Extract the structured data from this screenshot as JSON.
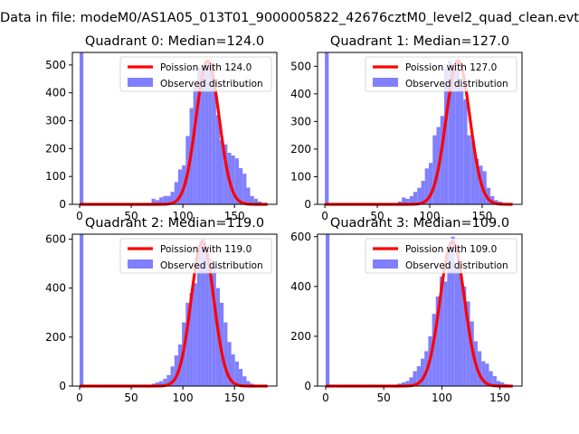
{
  "figure": {
    "suptitle": "Data in file: modeM0/AS1A05_013T01_9000005822_42676cztM0_level2_quad_clean.evt"
  },
  "colors": {
    "observed": "#8080ff",
    "poisson": "#ff0000",
    "axes": "#000000",
    "background": "#ffffff"
  },
  "chart_data": [
    {
      "type": "bar",
      "title": "Quadrant 0: Median=124.0",
      "xlim": [
        -7,
        191
      ],
      "ylim": [
        0,
        545
      ],
      "xticks": [
        0,
        50,
        100,
        150
      ],
      "yticks": [
        0,
        100,
        200,
        300,
        400,
        500
      ],
      "grid": false,
      "legend_placement": "upper right",
      "legend": [
        "Poission with 124.0",
        "Observed distribution"
      ],
      "series": [
        {
          "name": "Observed distribution",
          "type": "histogram",
          "bin_width": 3.67,
          "x": [
            0.0,
            66.1,
            69.7,
            73.4,
            77.1,
            80.8,
            84.4,
            88.1,
            91.8,
            95.4,
            99.1,
            102.8,
            106.5,
            110.1,
            113.8,
            117.5,
            121.1,
            124.8,
            128.5,
            132.2,
            135.8,
            139.5,
            143.2,
            146.8,
            150.5,
            154.2,
            157.9,
            161.5,
            165.2,
            168.9,
            172.5,
            176.2
          ],
          "values": [
            545,
            5,
            20,
            15,
            25,
            30,
            30,
            45,
            80,
            125,
            140,
            245,
            345,
            420,
            490,
            500,
            510,
            500,
            420,
            320,
            230,
            215,
            185,
            175,
            165,
            130,
            110,
            60,
            30,
            20,
            10,
            5
          ]
        },
        {
          "name": "Poission with 124.0",
          "type": "line",
          "mean": 124.0,
          "x_range": [
            0,
            182
          ],
          "peak": 515
        }
      ]
    },
    {
      "type": "bar",
      "title": "Quadrant 1: Median=127.0",
      "xlim": [
        -7,
        188
      ],
      "ylim": [
        0,
        550
      ],
      "xticks": [
        0,
        50,
        100,
        150
      ],
      "yticks": [
        0,
        100,
        200,
        300,
        400,
        500
      ],
      "grid": false,
      "legend_placement": "upper right",
      "legend": [
        "Poission with 127.0",
        "Observed distribution"
      ],
      "series": [
        {
          "name": "Observed distribution",
          "type": "histogram",
          "bin_width": 3.67,
          "x": [
            0.0,
            69.7,
            73.4,
            77.1,
            80.8,
            84.4,
            88.1,
            91.8,
            95.4,
            99.1,
            102.8,
            106.5,
            110.1,
            113.8,
            117.5,
            121.1,
            124.8,
            128.5,
            132.2,
            135.8,
            139.5,
            143.2,
            146.8,
            150.5,
            154.2,
            157.9,
            161.5,
            165.2,
            168.9
          ],
          "values": [
            550,
            10,
            25,
            20,
            30,
            45,
            60,
            85,
            130,
            150,
            250,
            280,
            320,
            490,
            520,
            510,
            490,
            430,
            380,
            250,
            230,
            165,
            140,
            120,
            60,
            30,
            15,
            10,
            5
          ]
        },
        {
          "name": "Poission with 127.0",
          "type": "line",
          "mean": 127.0,
          "x_range": [
            0,
            179
          ],
          "peak": 520
        }
      ]
    },
    {
      "type": "bar",
      "title": "Quadrant 2: Median=119.0",
      "xlim": [
        -7,
        191
      ],
      "ylim": [
        0,
        620
      ],
      "xticks": [
        0,
        50,
        100,
        150
      ],
      "yticks": [
        0,
        200,
        400,
        600
      ],
      "grid": false,
      "legend_placement": "upper right",
      "legend": [
        "Poission with 119.0",
        "Observed distribution"
      ],
      "series": [
        {
          "name": "Observed distribution",
          "type": "histogram",
          "bin_width": 3.67,
          "x": [
            0.0,
            66.1,
            69.7,
            73.4,
            77.1,
            80.8,
            84.4,
            88.1,
            91.8,
            95.4,
            99.1,
            102.8,
            106.5,
            110.1,
            113.8,
            117.5,
            121.1,
            124.8,
            128.5,
            132.2,
            135.8,
            139.5,
            143.2,
            146.8,
            150.5,
            154.2,
            157.9,
            161.5,
            165.2,
            168.9,
            172.5
          ],
          "values": [
            620,
            5,
            10,
            15,
            20,
            30,
            45,
            80,
            125,
            170,
            260,
            340,
            380,
            420,
            560,
            600,
            560,
            520,
            490,
            400,
            340,
            260,
            180,
            130,
            100,
            70,
            40,
            20,
            10,
            5,
            5
          ]
        },
        {
          "name": "Poission with 119.0",
          "type": "line",
          "mean": 119.0,
          "x_range": [
            0,
            182
          ],
          "peak": 590
        }
      ]
    },
    {
      "type": "bar",
      "title": "Quadrant 3: Median=109.0",
      "xlim": [
        -7,
        169
      ],
      "ylim": [
        0,
        610
      ],
      "xticks": [
        0,
        50,
        100,
        150
      ],
      "yticks": [
        0,
        200,
        400,
        600
      ],
      "grid": false,
      "legend_placement": "upper right",
      "legend": [
        "Poission with 109.0",
        "Observed distribution"
      ],
      "series": [
        {
          "name": "Observed distribution",
          "type": "histogram",
          "bin_width": 3.27,
          "x": [
            0.0,
            62.1,
            65.4,
            68.7,
            71.9,
            75.2,
            78.5,
            81.8,
            85.0,
            88.3,
            91.6,
            94.8,
            98.1,
            101.4,
            104.6,
            107.9,
            111.2,
            114.5,
            117.7,
            121.0,
            124.3,
            127.5,
            130.8,
            134.1,
            137.3,
            140.6,
            143.9,
            147.2,
            150.4,
            153.7,
            157.0
          ],
          "values": [
            610,
            10,
            15,
            20,
            35,
            60,
            80,
            110,
            140,
            200,
            290,
            360,
            440,
            420,
            540,
            600,
            480,
            460,
            400,
            340,
            260,
            180,
            140,
            100,
            90,
            60,
            40,
            20,
            15,
            8,
            5
          ]
        },
        {
          "name": "Poission with 109.0",
          "type": "line",
          "mean": 109.0,
          "x_range": [
            0,
            161
          ],
          "peak": 580
        }
      ]
    }
  ]
}
